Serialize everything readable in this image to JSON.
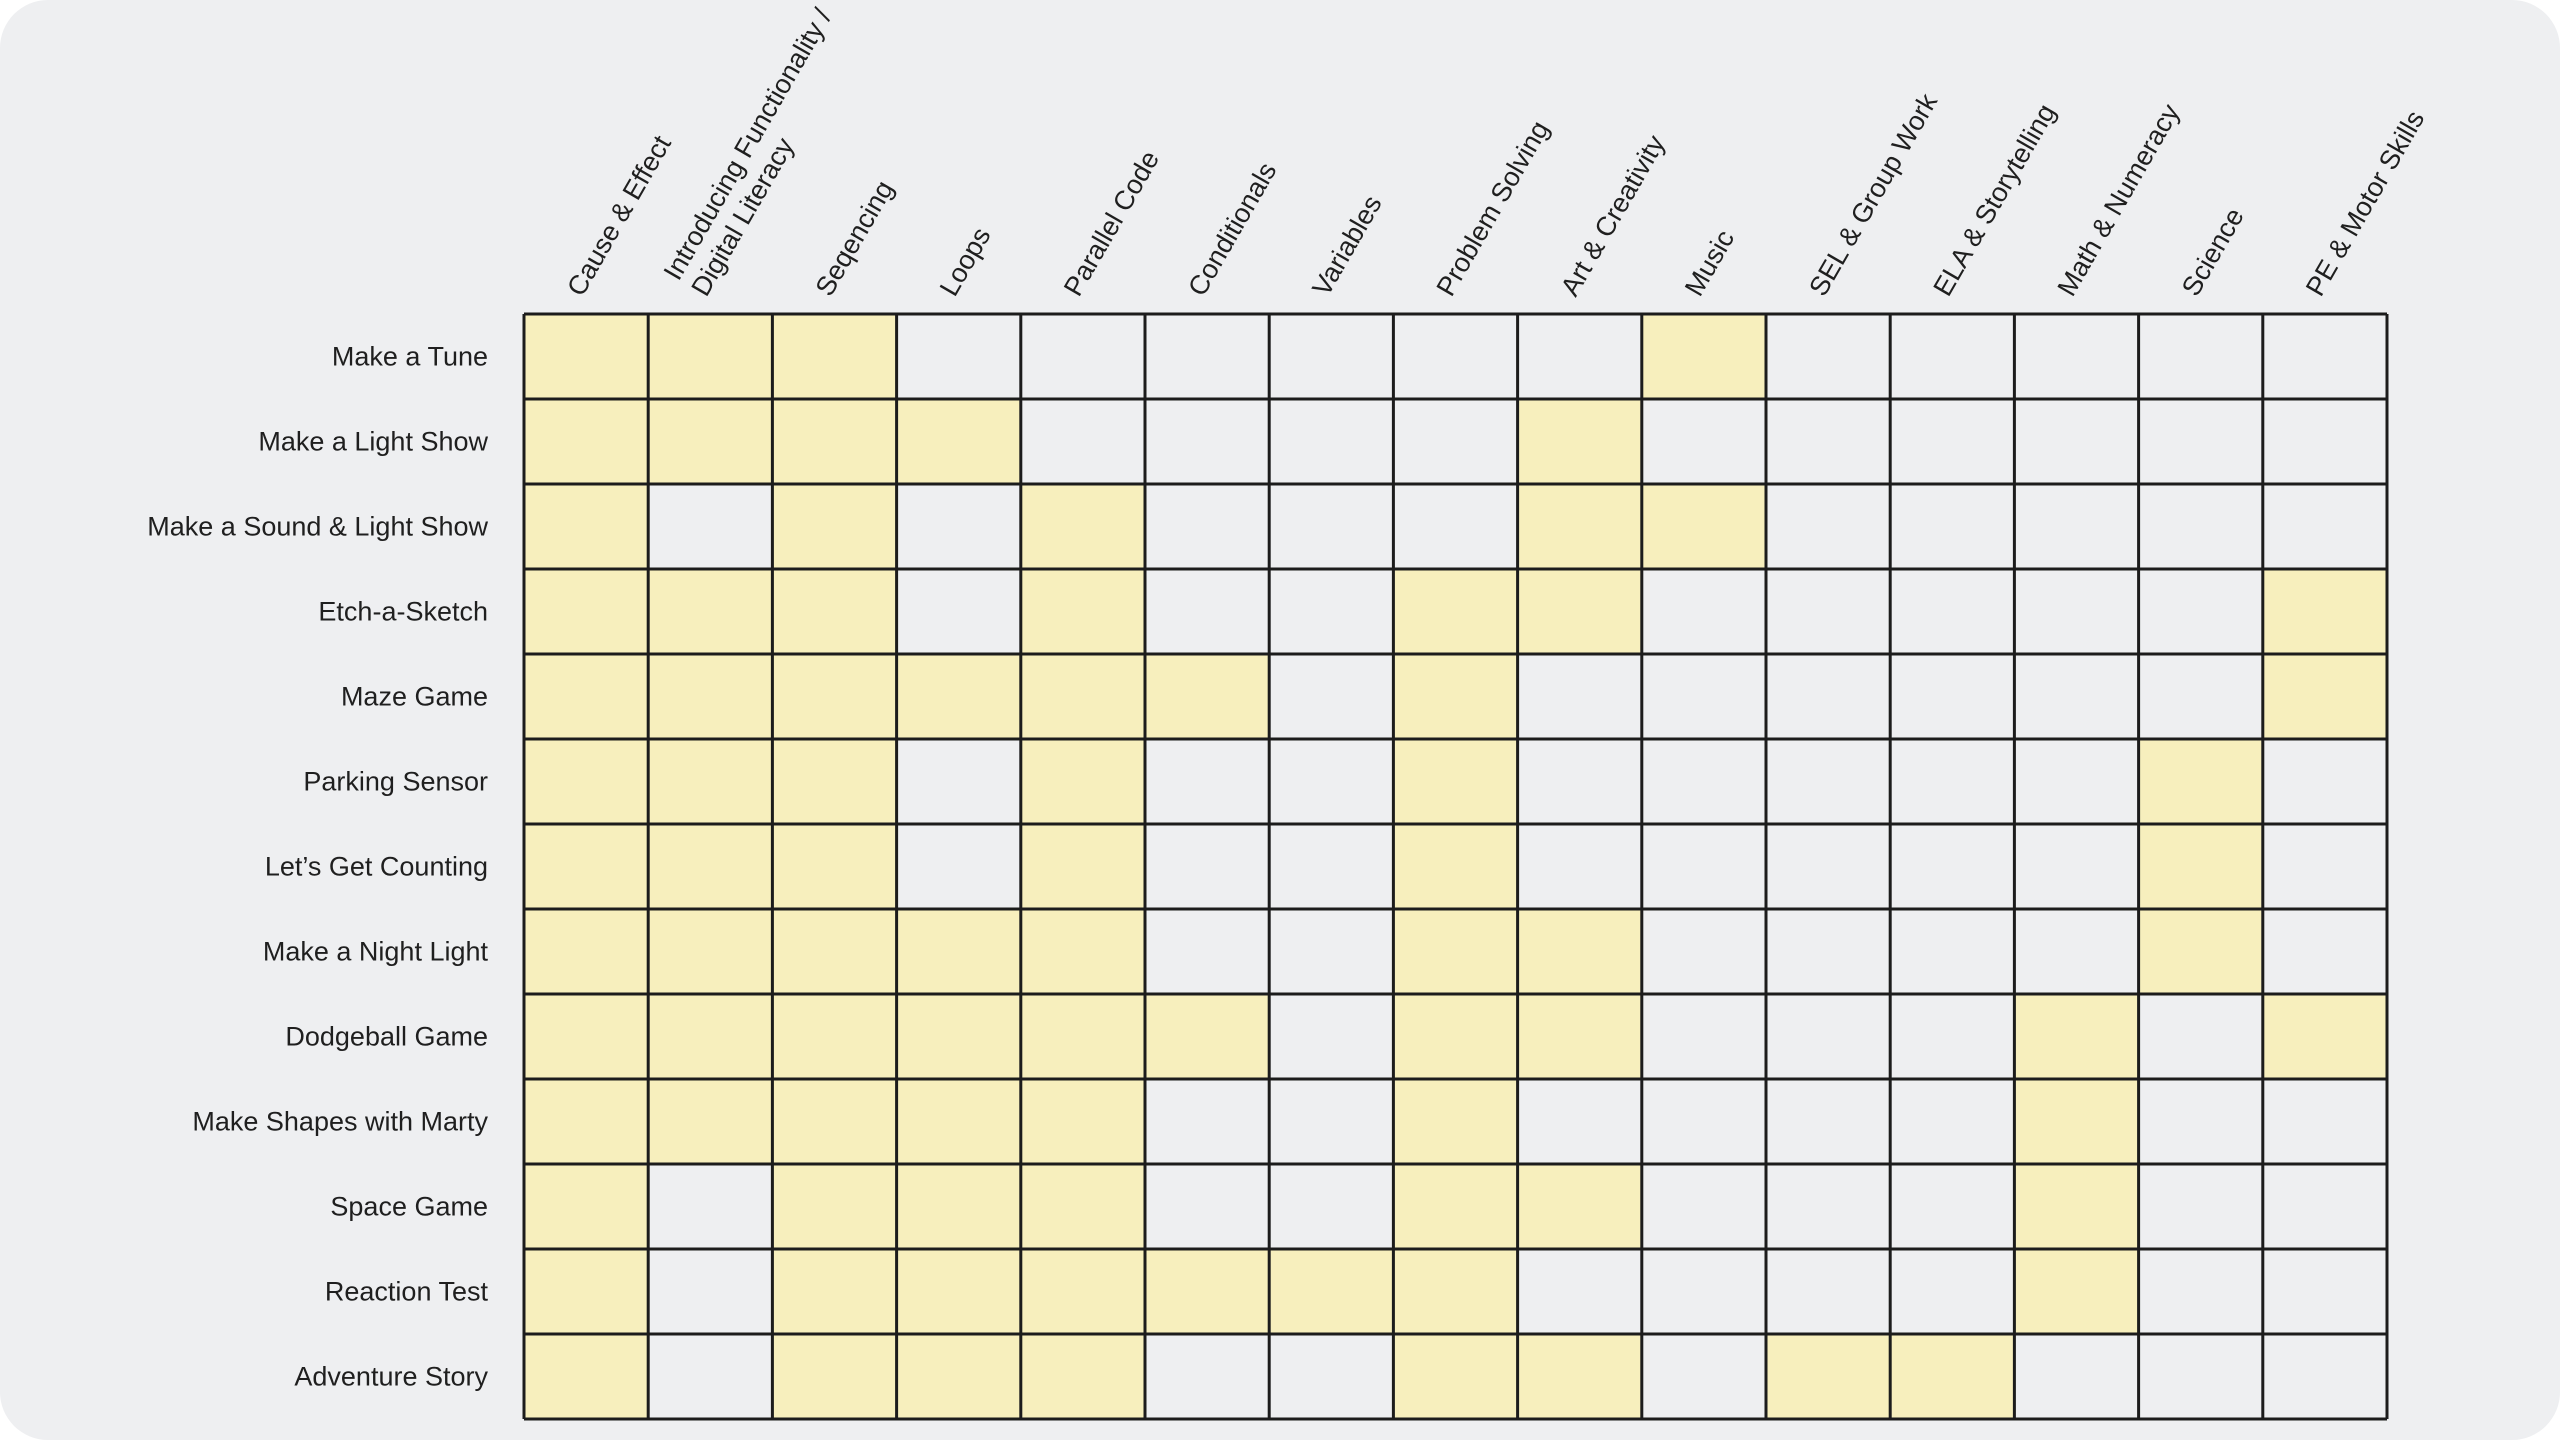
{
  "chart_data": {
    "type": "table",
    "title": "",
    "columns": [
      [
        "Cause & Effect"
      ],
      [
        "Introducing Functionality /",
        "Digital Literacy"
      ],
      [
        "Seqencing"
      ],
      [
        "Loops"
      ],
      [
        "Parallel Code"
      ],
      [
        "Conditionals"
      ],
      [
        "Variables"
      ],
      [
        "Problem Solving"
      ],
      [
        "Art & Creativity"
      ],
      [
        "Music"
      ],
      [
        "SEL & Group Work"
      ],
      [
        "ELA & Storytelling"
      ],
      [
        "Math & Numeracy"
      ],
      [
        "Science"
      ],
      [
        "PE & Motor Skills"
      ]
    ],
    "rows": [
      "Make a Tune",
      "Make a Light Show",
      "Make a Sound & Light Show",
      "Etch-a-Sketch",
      "Maze Game",
      "Parking Sensor",
      "Let’s Get Counting",
      "Make a Night Light",
      "Dodgeball Game",
      "Make Shapes with Marty",
      "Space Game",
      "Reaction Test",
      "Adventure Story"
    ],
    "values": [
      [
        1,
        1,
        1,
        0,
        0,
        0,
        0,
        0,
        0,
        1,
        0,
        0,
        0,
        0,
        0
      ],
      [
        1,
        1,
        1,
        1,
        0,
        0,
        0,
        0,
        1,
        0,
        0,
        0,
        0,
        0,
        0
      ],
      [
        1,
        0,
        1,
        0,
        1,
        0,
        0,
        0,
        1,
        1,
        0,
        0,
        0,
        0,
        0
      ],
      [
        1,
        1,
        1,
        0,
        1,
        0,
        0,
        1,
        1,
        0,
        0,
        0,
        0,
        0,
        1
      ],
      [
        1,
        1,
        1,
        1,
        1,
        1,
        0,
        1,
        0,
        0,
        0,
        0,
        0,
        0,
        1
      ],
      [
        1,
        1,
        1,
        0,
        1,
        0,
        0,
        1,
        0,
        0,
        0,
        0,
        0,
        1,
        0
      ],
      [
        1,
        1,
        1,
        0,
        1,
        0,
        0,
        1,
        0,
        0,
        0,
        0,
        0,
        1,
        0
      ],
      [
        1,
        1,
        1,
        1,
        1,
        0,
        0,
        1,
        1,
        0,
        0,
        0,
        0,
        1,
        0
      ],
      [
        1,
        1,
        1,
        1,
        1,
        1,
        0,
        1,
        1,
        0,
        0,
        0,
        1,
        0,
        1
      ],
      [
        1,
        1,
        1,
        1,
        1,
        0,
        0,
        1,
        0,
        0,
        0,
        0,
        1,
        0,
        0
      ],
      [
        1,
        0,
        1,
        1,
        1,
        0,
        0,
        1,
        1,
        0,
        0,
        0,
        1,
        0,
        0
      ],
      [
        1,
        0,
        1,
        1,
        1,
        1,
        1,
        1,
        0,
        0,
        0,
        0,
        1,
        0,
        0
      ],
      [
        1,
        0,
        1,
        1,
        1,
        0,
        0,
        1,
        1,
        0,
        1,
        1,
        0,
        0,
        0
      ]
    ],
    "colors": {
      "filled": "#f7efbd",
      "empty": "#eeeff1",
      "grid": "#1c1c1c",
      "text": "#1f1f1f"
    }
  }
}
